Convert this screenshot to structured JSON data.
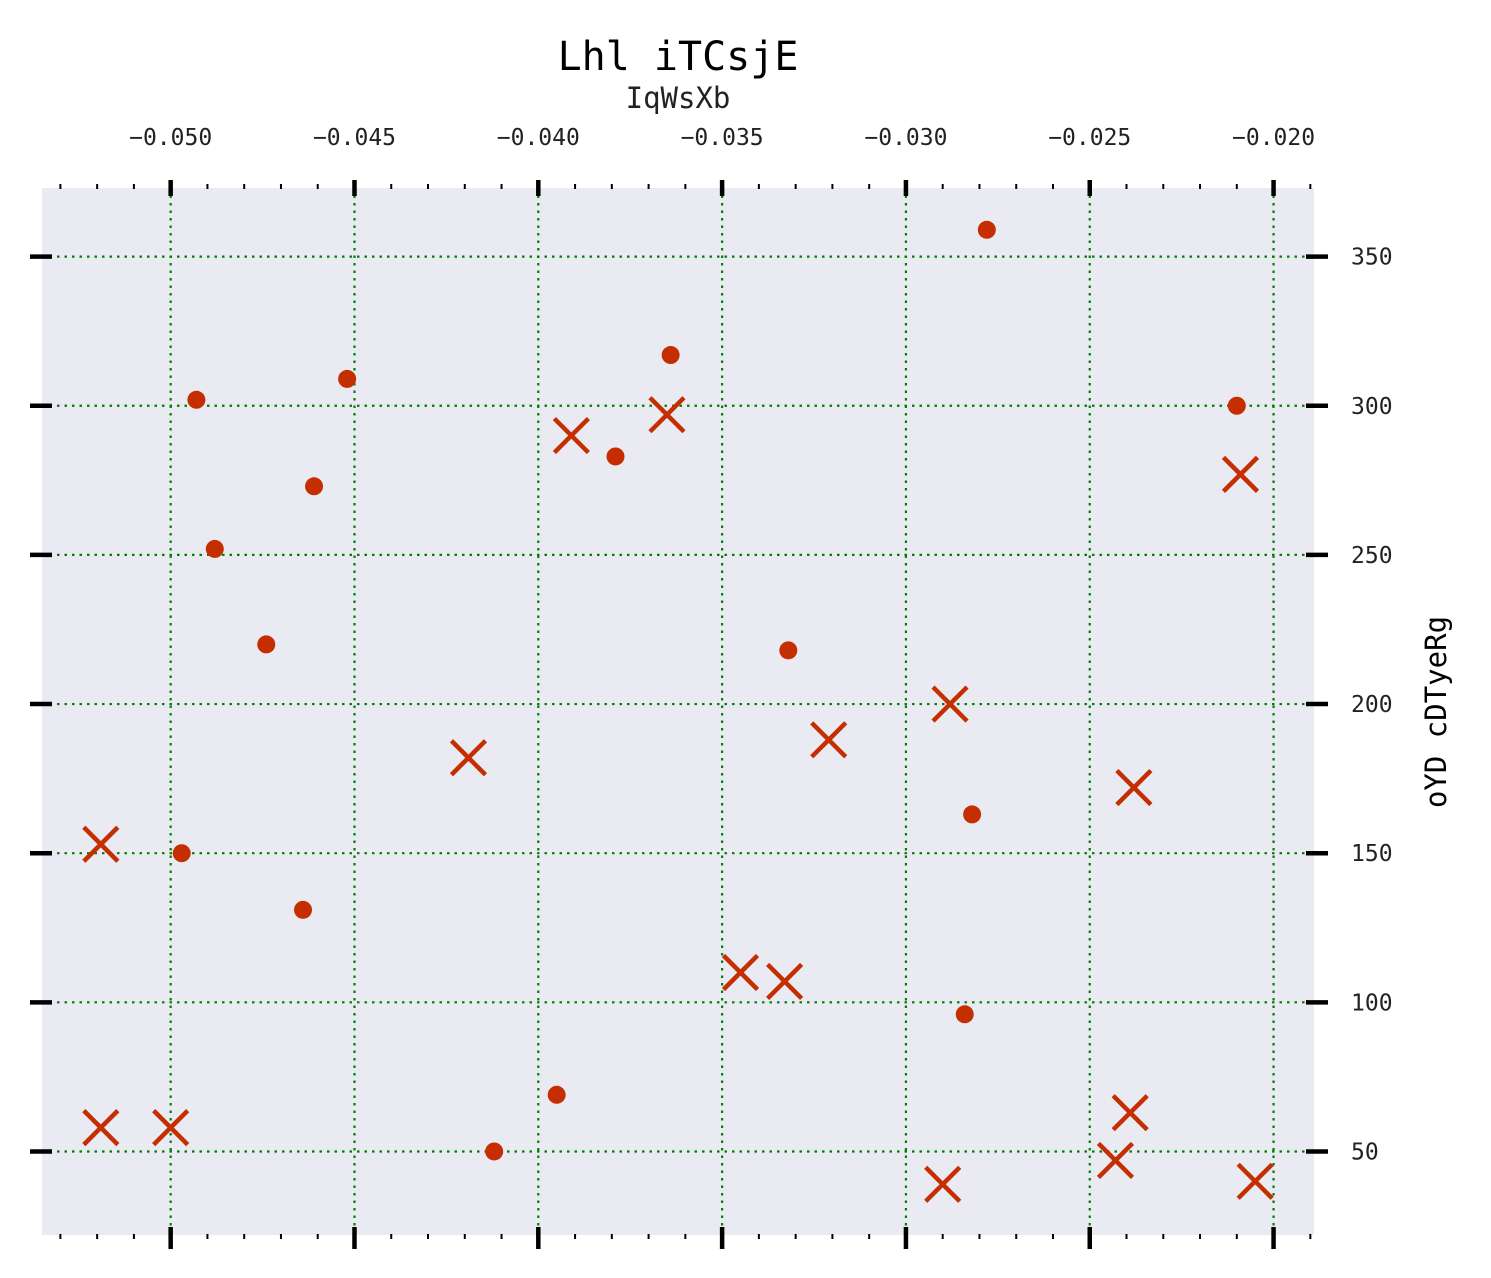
{
  "chart_data": {
    "type": "scatter",
    "title": "Lhl iTCsjE",
    "xlabel": "IqWsXb",
    "ylabel": "oYD  cDTyeRg",
    "xlim": [
      -0.0535,
      -0.0189
    ],
    "ylim": [
      22,
      373
    ],
    "x_ticks": [
      -0.05,
      -0.045,
      -0.04,
      -0.035,
      -0.03,
      -0.025,
      -0.02
    ],
    "x_tick_labels": [
      "−0.050",
      "−0.045",
      "−0.040",
      "−0.035",
      "−0.030",
      "−0.025",
      "−0.020"
    ],
    "y_ticks": [
      50,
      100,
      150,
      200,
      250,
      300,
      350
    ],
    "y_tick_labels": [
      "50",
      "100",
      "150",
      "200",
      "250",
      "300",
      "350"
    ],
    "x_axis_position": "top",
    "y_axis_position": "right",
    "grid": true,
    "colors": {
      "background": "#eaeaf2",
      "grid": "#008000",
      "marker": "#c42e00",
      "axis": "#000000"
    },
    "series": [
      {
        "marker": "circle",
        "points": [
          {
            "x": -0.0474,
            "y": 220
          },
          {
            "x": -0.0461,
            "y": 273
          },
          {
            "x": -0.0452,
            "y": 309
          },
          {
            "x": -0.0493,
            "y": 302
          },
          {
            "x": -0.0488,
            "y": 252
          },
          {
            "x": -0.0464,
            "y": 131
          },
          {
            "x": -0.0497,
            "y": 150
          },
          {
            "x": -0.0412,
            "y": 50
          },
          {
            "x": -0.0395,
            "y": 69
          },
          {
            "x": -0.0379,
            "y": 283
          },
          {
            "x": -0.0364,
            "y": 317
          },
          {
            "x": -0.0332,
            "y": 218
          },
          {
            "x": -0.0278,
            "y": 359
          },
          {
            "x": -0.0282,
            "y": 163
          },
          {
            "x": -0.0284,
            "y": 96
          },
          {
            "x": -0.021,
            "y": 300
          }
        ]
      },
      {
        "marker": "x",
        "points": [
          {
            "x": -0.0519,
            "y": 153
          },
          {
            "x": -0.0519,
            "y": 58
          },
          {
            "x": -0.05,
            "y": 58
          },
          {
            "x": -0.0419,
            "y": 182
          },
          {
            "x": -0.0391,
            "y": 290
          },
          {
            "x": -0.0365,
            "y": 297
          },
          {
            "x": -0.0345,
            "y": 110
          },
          {
            "x": -0.0333,
            "y": 107
          },
          {
            "x": -0.0321,
            "y": 188
          },
          {
            "x": -0.0288,
            "y": 200
          },
          {
            "x": -0.029,
            "y": 39
          },
          {
            "x": -0.0238,
            "y": 172
          },
          {
            "x": -0.0239,
            "y": 63
          },
          {
            "x": -0.0243,
            "y": 47
          },
          {
            "x": -0.0209,
            "y": 277
          },
          {
            "x": -0.0205,
            "y": 40
          }
        ]
      }
    ]
  }
}
